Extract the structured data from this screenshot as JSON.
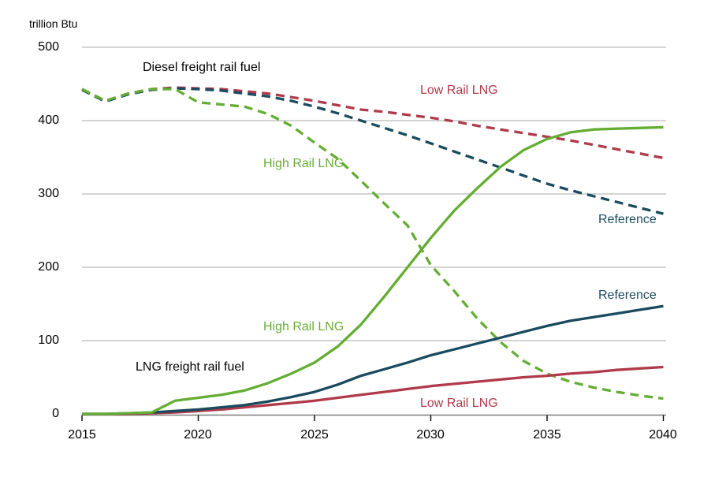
{
  "chart_data": {
    "type": "line",
    "title": "trillion Btu",
    "unit_label": "trillion Btu",
    "xlim": [
      2015,
      2040
    ],
    "ylim": [
      0,
      500
    ],
    "grid": "horizontal",
    "legend_position": "inline-annotations",
    "x": [
      2015,
      2016,
      2017,
      2018,
      2019,
      2020,
      2021,
      2022,
      2023,
      2024,
      2025,
      2026,
      2027,
      2028,
      2029,
      2030,
      2031,
      2032,
      2033,
      2034,
      2035,
      2036,
      2037,
      2038,
      2039,
      2040
    ],
    "x_ticks": [
      2015,
      2020,
      2025,
      2030,
      2035,
      2040
    ],
    "y_ticks": [
      500,
      400,
      300,
      200,
      100,
      0
    ],
    "colors": {
      "navy": "#1a4a5e",
      "green": "#64ad33",
      "red": "#b03a4a",
      "gridline": "#a8a8a8",
      "axis": "#7f7f7f",
      "tick": "#000000"
    },
    "series": [
      {
        "name": "Diesel Low Rail LNG",
        "group": "Diesel freight rail fuel",
        "style": "dashed",
        "color": "#b03a4a",
        "values": [
          443,
          427,
          437,
          443,
          445,
          444,
          443,
          440,
          437,
          432,
          427,
          421,
          415,
          412,
          408,
          404,
          399,
          393,
          388,
          383,
          378,
          373,
          367,
          361,
          355,
          349
        ]
      },
      {
        "name": "Diesel Reference",
        "group": "Diesel freight rail fuel",
        "style": "dashed",
        "color": "#1a4a5e",
        "values": [
          442,
          426,
          436,
          442,
          444,
          443,
          441,
          437,
          433,
          427,
          419,
          410,
          400,
          390,
          380,
          369,
          358,
          347,
          336,
          325,
          314,
          305,
          297,
          289,
          281,
          273
        ]
      },
      {
        "name": "Diesel High Rail LNG",
        "group": "Diesel freight rail fuel",
        "style": "dashed",
        "color": "#64ad33",
        "values": [
          443,
          427,
          437,
          443,
          443,
          425,
          422,
          419,
          409,
          393,
          370,
          348,
          318,
          287,
          257,
          203,
          168,
          130,
          98,
          72,
          55,
          44,
          36,
          30,
          25,
          21
        ]
      },
      {
        "name": "LNG Low Rail LNG",
        "group": "LNG freight rail fuel",
        "style": "solid",
        "color": "#b03a4a",
        "values": [
          0,
          0,
          0,
          1,
          2,
          4,
          6,
          9,
          12,
          15,
          18,
          22,
          26,
          30,
          34,
          38,
          41,
          44,
          47,
          50,
          52,
          55,
          57,
          60,
          62,
          64
        ]
      },
      {
        "name": "LNG Reference",
        "group": "LNG freight rail fuel",
        "style": "solid",
        "color": "#1a4a5e",
        "values": [
          0,
          0,
          1,
          2,
          4,
          6,
          9,
          12,
          17,
          23,
          30,
          40,
          52,
          61,
          70,
          80,
          88,
          96,
          104,
          112,
          120,
          127,
          132,
          137,
          142,
          147
        ]
      },
      {
        "name": "LNG High Rail LNG",
        "group": "LNG freight rail fuel",
        "style": "solid",
        "color": "#64ad33",
        "values": [
          0,
          0,
          1,
          2,
          18,
          22,
          26,
          32,
          42,
          55,
          70,
          92,
          122,
          160,
          200,
          240,
          277,
          308,
          337,
          360,
          375,
          384,
          388,
          389,
          390,
          391
        ]
      }
    ],
    "annotations": {
      "diesel_group": "Diesel freight rail fuel",
      "lng_group": "LNG freight rail fuel",
      "diesel_low": "Low Rail LNG",
      "diesel_high": "High Rail LNG",
      "diesel_ref": "Reference",
      "lng_ref": "Reference",
      "lng_high": "High Rail LNG",
      "lng_low": "Low Rail LNG"
    }
  }
}
